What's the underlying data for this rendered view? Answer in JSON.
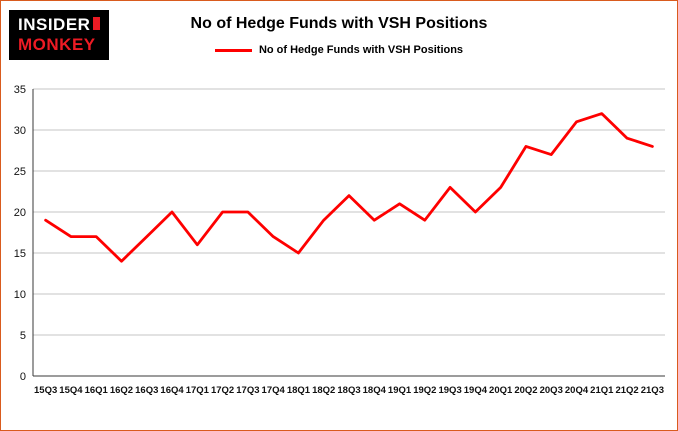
{
  "logo": {
    "line1": "INSIDER",
    "line2": "MONKEY"
  },
  "chart_data": {
    "type": "line",
    "title": "No of Hedge Funds with VSH Positions",
    "xlabel": "",
    "ylabel": "",
    "ylim": [
      0,
      35
    ],
    "ytick_interval": 5,
    "grid": true,
    "legend_position": "top",
    "categories": [
      "15Q3",
      "15Q4",
      "16Q1",
      "16Q2",
      "16Q3",
      "16Q4",
      "17Q1",
      "17Q2",
      "17Q3",
      "17Q4",
      "18Q1",
      "18Q2",
      "18Q3",
      "18Q4",
      "19Q1",
      "19Q2",
      "19Q3",
      "19Q4",
      "20Q1",
      "20Q2",
      "20Q3",
      "20Q4",
      "21Q1",
      "21Q2",
      "21Q3"
    ],
    "series": [
      {
        "name": "No of Hedge Funds with VSH Positions",
        "color": "#fe0000",
        "values": [
          19,
          17,
          17,
          14,
          17,
          20,
          16,
          20,
          20,
          17,
          15,
          19,
          22,
          19,
          21,
          19,
          23,
          20,
          23,
          28,
          27,
          31,
          32,
          29,
          28
        ]
      }
    ]
  },
  "colors": {
    "accent_red": "#fe0000",
    "logo_background": "#000000",
    "logo_monkey_red": "#ed1b24",
    "grid_line": "#c6c6c6",
    "axis_line": "#3a3a3a",
    "page_border": "#d95b1e",
    "text": "#111111"
  }
}
